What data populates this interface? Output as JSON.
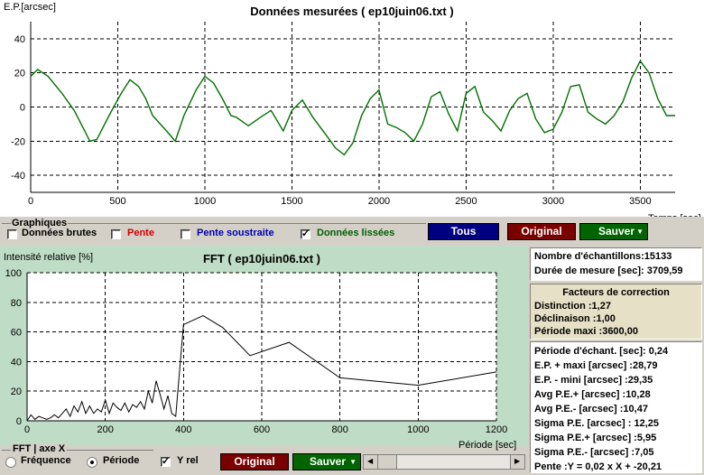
{
  "top_chart": {
    "title": "Données mesurées ( ep10juin06.txt )",
    "ylabel": "E.P.[arcsec]",
    "xlabel": "Temps [sec]",
    "x_ticks": [
      "0",
      "500",
      "1000",
      "1500",
      "2000",
      "2500",
      "3000",
      "3500"
    ],
    "y_ticks": [
      "40",
      "20",
      "0",
      "-20",
      "-40"
    ],
    "line_color": "#007000"
  },
  "graphiques": {
    "title": "Graphiques",
    "items": [
      {
        "label": "Données brutes",
        "checked": false,
        "color": "#000000"
      },
      {
        "label": "Pente",
        "checked": false,
        "color": "#c00000"
      },
      {
        "label": "Pente soustraite",
        "checked": false,
        "color": "#0000a0"
      },
      {
        "label": "Données lissées",
        "checked": true,
        "color": "#006000"
      }
    ]
  },
  "top_buttons": {
    "tous": "Tous",
    "original": "Original",
    "sauver": "Sauver"
  },
  "fft": {
    "title": "FFT ( ep10juin06.txt )",
    "ylabel": "Intensité relative [%]",
    "xlabel": "Période [sec]",
    "x_ticks": [
      "0",
      "200",
      "400",
      "600",
      "800",
      "1000",
      "1200"
    ],
    "y_ticks": [
      "100",
      "80",
      "60",
      "40",
      "20",
      "0"
    ]
  },
  "fft_axis": {
    "title": "FFT | axe X",
    "options": [
      {
        "label": "Fréquence",
        "selected": false
      },
      {
        "label": "Période",
        "selected": true
      }
    ],
    "yrel_label": "Y rel",
    "yrel_checked": true
  },
  "bottom_buttons": {
    "original": "Original",
    "sauver": "Sauver"
  },
  "info1": [
    "Nombre d'échantillons:15133",
    "Durée de mesure [sec]: 3709,59"
  ],
  "correction": {
    "title": "Facteurs de correction",
    "lines": [
      "Distinction :1,27",
      "Déclinaison :1,00",
      "Période maxi :3600,00"
    ]
  },
  "stats": [
    "Période d'échant. [sec]: 0,24",
    "E.P. + maxi [arcsec] :28,79",
    "E.P. - mini [arcsec] :29,35",
    "Avg P.E.+ [arcsec] :10,28",
    "Avg P.E.- [arcsec] :10,47",
    "Sigma P.E. [arcsec] : 12,25",
    "Sigma P.E.+ [arcsec] :5,95",
    "Sigma P.E.- [arcsec] :7,05",
    "Pente :Y = 0,02 x X + -20,21"
  ],
  "chart_data": [
    {
      "type": "line",
      "title": "Données mesurées ( ep10juin06.txt )",
      "xlabel": "Temps [sec]",
      "ylabel": "E.P.[arcsec]",
      "xlim": [
        0,
        3700
      ],
      "ylim": [
        -50,
        50
      ],
      "grid": true,
      "series": [
        {
          "x": [
            0,
            40,
            100,
            180,
            250,
            300,
            340,
            380,
            450,
            520,
            570,
            620,
            660,
            700,
            780,
            830,
            880,
            950,
            1000,
            1050,
            1100,
            1150,
            1180,
            1250,
            1320,
            1380,
            1450,
            1500,
            1560,
            1620,
            1700,
            1750,
            1800,
            1850,
            1900,
            1950,
            2000,
            2050,
            2100,
            2150,
            2200,
            2250,
            2300,
            2350,
            2400,
            2450,
            2500,
            2550,
            2600,
            2650,
            2700,
            2750,
            2800,
            2850,
            2900,
            2950,
            3000,
            3050,
            3100,
            3150,
            3200,
            3250,
            3300,
            3350,
            3400,
            3450,
            3500,
            3550,
            3600,
            3650,
            3700
          ],
          "y": [
            18,
            22,
            18,
            8,
            -2,
            -12,
            -20,
            -19,
            -5,
            8,
            16,
            12,
            5,
            -5,
            -14,
            -20,
            -5,
            10,
            18,
            14,
            5,
            -5,
            -6,
            -11,
            -6,
            -2,
            -14,
            -2,
            4,
            -6,
            -17,
            -24,
            -28,
            -21,
            -5,
            5,
            10,
            -10,
            -12,
            -15,
            -20,
            -10,
            6,
            9,
            -4,
            -14,
            8,
            12,
            -3,
            -8,
            -14,
            -2,
            5,
            8,
            -7,
            -15,
            -13,
            -3,
            12,
            13,
            -3,
            -7,
            -10,
            -5,
            3,
            17,
            27,
            20,
            5,
            -5,
            -5
          ]
        }
      ]
    },
    {
      "type": "line",
      "title": "FFT ( ep10juin06.txt )",
      "xlabel": "Période [sec]",
      "ylabel": "Intensité relative [%]",
      "xlim": [
        0,
        1200
      ],
      "ylim": [
        0,
        100
      ],
      "grid": true,
      "series": [
        {
          "x": [
            0,
            10,
            20,
            30,
            40,
            50,
            60,
            70,
            80,
            90,
            100,
            110,
            120,
            130,
            140,
            150,
            160,
            170,
            180,
            190,
            200,
            210,
            220,
            230,
            240,
            250,
            260,
            270,
            280,
            290,
            300,
            310,
            320,
            330,
            340,
            350,
            360,
            370,
            380,
            400,
            450,
            500,
            570,
            670,
            800,
            1000,
            1200
          ],
          "y": [
            0,
            4,
            1,
            3,
            2,
            1,
            2,
            4,
            2,
            5,
            8,
            3,
            10,
            6,
            13,
            5,
            10,
            5,
            8,
            6,
            14,
            5,
            12,
            9,
            7,
            12,
            6,
            11,
            9,
            13,
            8,
            20,
            12,
            27,
            18,
            8,
            17,
            5,
            3,
            65,
            71,
            63,
            44,
            53,
            29,
            24,
            33
          ]
        }
      ]
    }
  ]
}
